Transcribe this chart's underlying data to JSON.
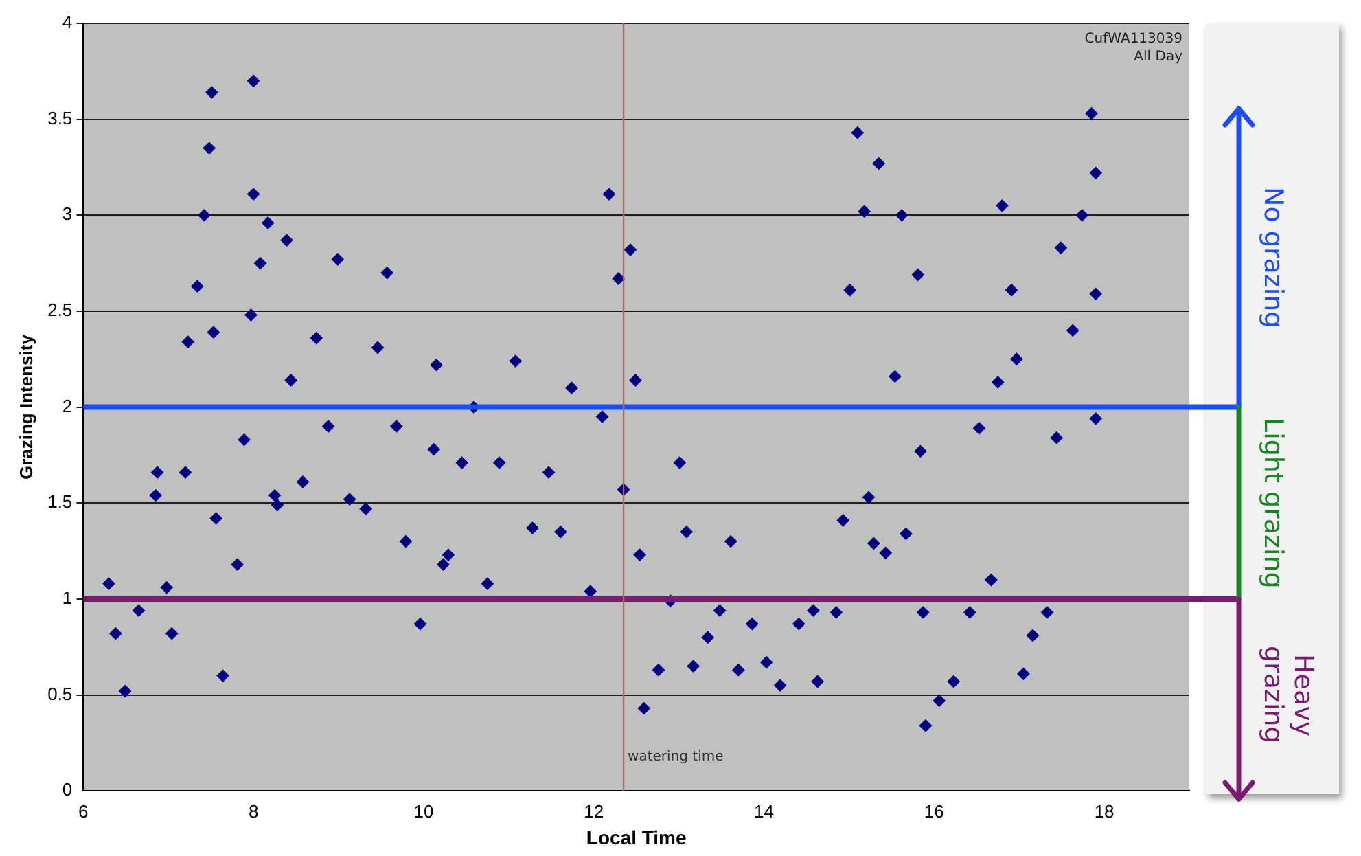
{
  "chart_data": {
    "type": "scatter",
    "xlabel": "Local Time",
    "ylabel": "Grazing Intensity",
    "x": [
      6.3,
      6.38,
      6.49,
      6.65,
      6.85,
      6.87,
      6.98,
      7.04,
      7.2,
      7.23,
      7.34,
      7.42,
      7.48,
      7.51,
      7.53,
      7.56,
      7.64,
      7.81,
      7.89,
      7.97,
      8.0,
      8.0,
      8.08,
      8.17,
      8.25,
      8.28,
      8.39,
      8.44,
      8.58,
      8.74,
      8.88,
      8.99,
      9.13,
      9.32,
      9.46,
      9.57,
      9.68,
      9.79,
      9.96,
      10.12,
      10.15,
      10.23,
      10.29,
      10.45,
      10.59,
      10.75,
      10.89,
      11.08,
      11.28,
      11.47,
      11.61,
      11.74,
      11.96,
      12.1,
      12.18,
      12.29,
      12.35,
      12.43,
      12.49,
      12.54,
      12.59,
      12.76,
      12.9,
      13.01,
      13.09,
      13.17,
      13.34,
      13.48,
      13.61,
      13.7,
      13.86,
      14.03,
      14.19,
      14.41,
      14.58,
      14.63,
      14.85,
      14.93,
      15.01,
      15.1,
      15.18,
      15.23,
      15.29,
      15.35,
      15.43,
      15.54,
      15.62,
      15.67,
      15.81,
      15.84,
      15.87,
      15.9,
      16.06,
      16.23,
      16.42,
      16.53,
      16.67,
      16.75,
      16.8,
      16.91,
      16.97,
      17.05,
      17.16,
      17.33,
      17.44,
      17.49,
      17.63,
      17.74,
      17.85,
      17.9,
      17.9,
      17.9
    ],
    "series": [
      {
        "color": "#000080",
        "values": [
          1.08,
          0.82,
          0.52,
          0.94,
          1.54,
          1.66,
          1.06,
          0.82,
          1.66,
          2.34,
          2.63,
          3.0,
          3.35,
          3.64,
          2.39,
          1.42,
          0.6,
          1.18,
          1.83,
          2.48,
          3.11,
          3.7,
          2.75,
          2.96,
          1.54,
          1.49,
          2.87,
          2.14,
          1.61,
          2.36,
          1.9,
          2.77,
          1.52,
          1.47,
          2.31,
          2.7,
          1.9,
          1.3,
          0.87,
          1.78,
          2.22,
          1.18,
          1.23,
          1.71,
          2.0,
          1.08,
          1.71,
          2.24,
          1.37,
          1.66,
          1.35,
          2.1,
          1.04,
          1.95,
          3.11,
          2.67,
          1.57,
          2.82,
          2.14,
          1.23,
          0.43,
          0.63,
          0.99,
          1.71,
          1.35,
          0.65,
          0.8,
          0.94,
          1.3,
          0.63,
          0.87,
          0.67,
          0.55,
          0.87,
          0.94,
          0.57,
          0.93,
          1.41,
          2.61,
          3.43,
          3.02,
          1.53,
          1.29,
          3.27,
          1.24,
          2.16,
          3.0,
          1.34,
          2.69,
          1.77,
          0.93,
          0.34,
          0.47,
          0.57,
          0.93,
          1.89,
          1.1,
          2.13,
          3.05,
          2.61,
          2.25,
          0.61,
          0.81,
          0.93,
          1.84,
          2.83,
          2.4,
          3.0,
          3.53,
          3.22,
          2.59,
          1.94
        ]
      }
    ],
    "xlim": [
      6,
      19
    ],
    "xticks": [
      6,
      8,
      10,
      12,
      14,
      16,
      18
    ],
    "ylim": [
      0,
      4
    ],
    "yticks": [
      0,
      0.5,
      1,
      1.5,
      2,
      2.5,
      3,
      3.5,
      4
    ],
    "grid": "y",
    "legend": false,
    "marker": "diamond",
    "ref_lines": [
      {
        "axis": "y",
        "value": 2,
        "color": "#1a4dff"
      },
      {
        "axis": "y",
        "value": 1,
        "color": "#7a1a70"
      },
      {
        "axis": "x",
        "value": 12.35,
        "label": "watering time",
        "color": "#b06a5a"
      }
    ],
    "annotations": [
      "CufWA113039",
      "All Day",
      "No grazing",
      "Light grazing",
      "Heavy grazing"
    ]
  }
}
